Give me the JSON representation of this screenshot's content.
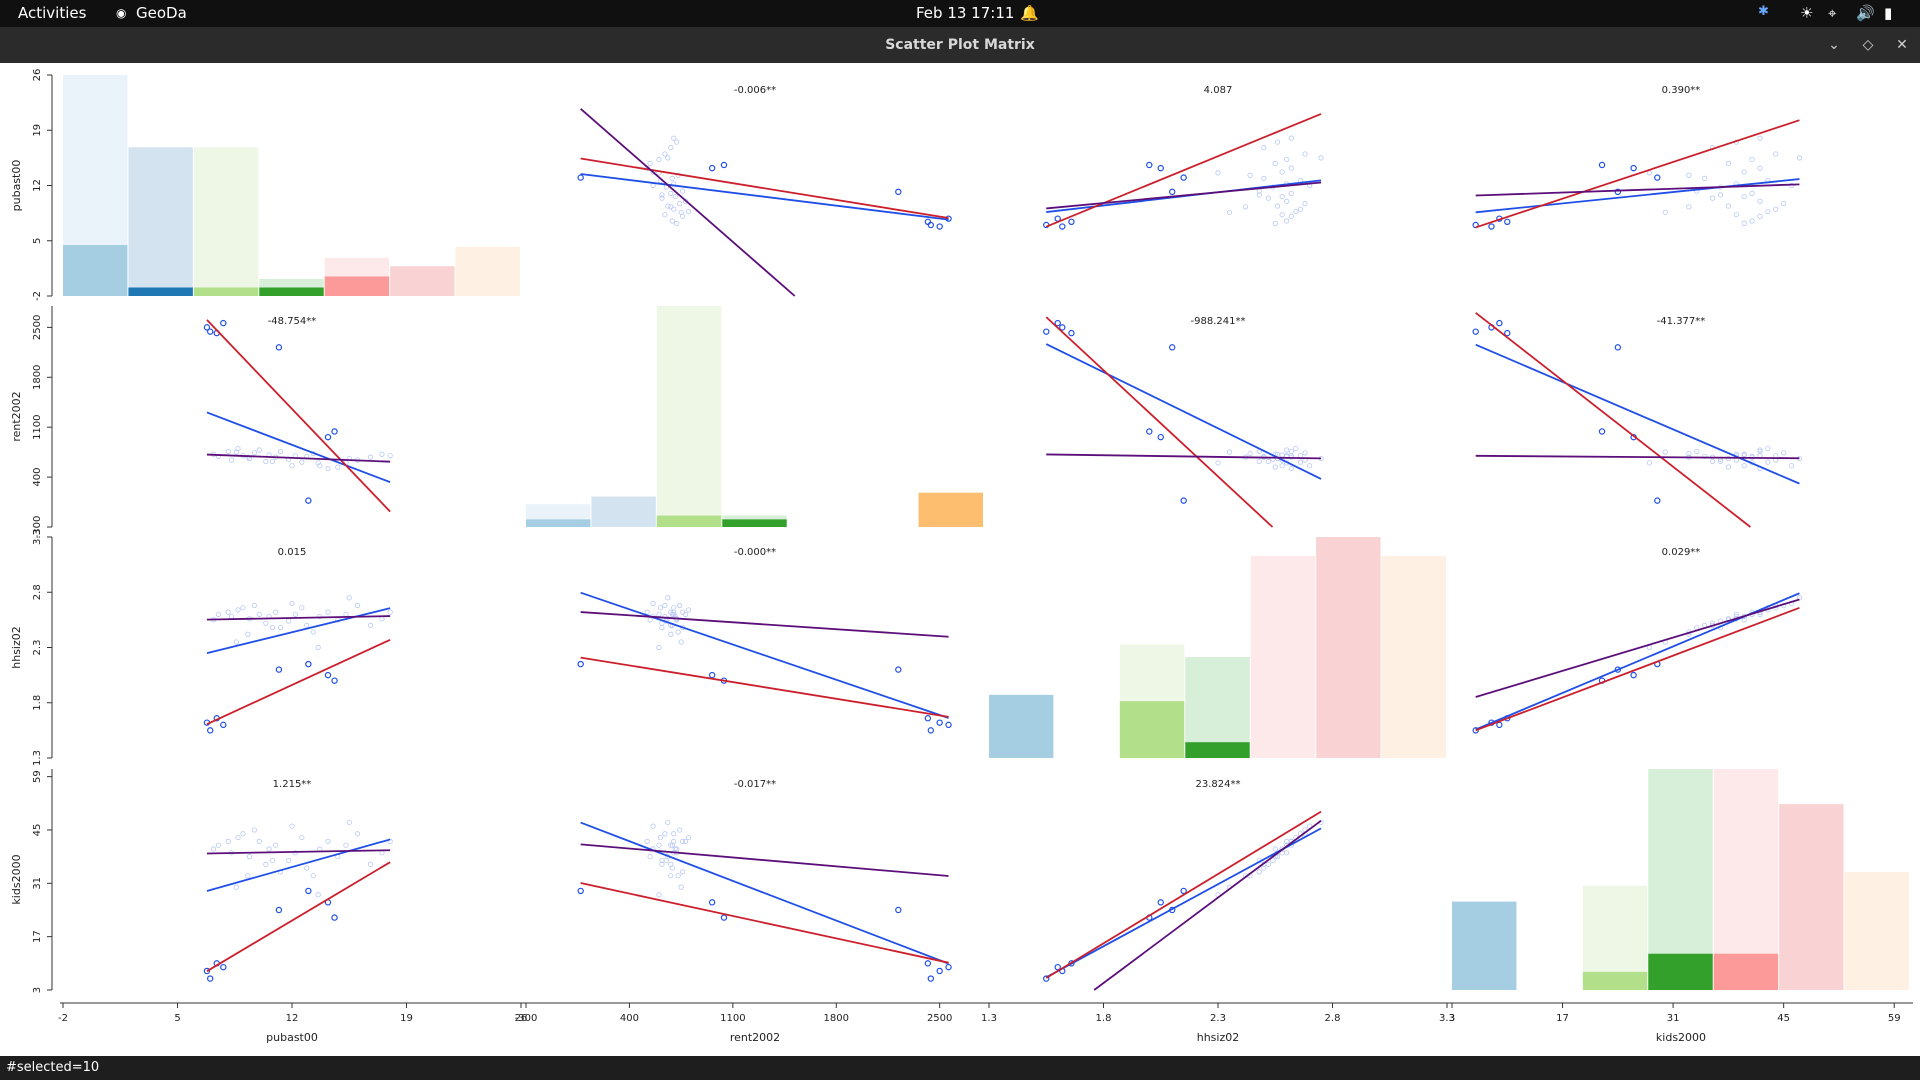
{
  "topbar": {
    "activities": "Activities",
    "app_name": "GeoDa",
    "clock": "Feb 13  17:11"
  },
  "window": {
    "title": "Scatter Plot Matrix"
  },
  "status": {
    "text": "#selected=10"
  },
  "colors": {
    "fit_all": "#1f4fe6",
    "fit_selected": "#cc1f2c",
    "fit_unselected": "#5c0f7a",
    "point": "#1f4fe6",
    "hist_palette": [
      "#a6cee3",
      "#1f78b4",
      "#b2df8a",
      "#33a02c",
      "#fb9a99",
      "#e31a1c",
      "#fdbf6f"
    ]
  },
  "chart_data": {
    "type": "scatter",
    "variables": [
      "pubast00",
      "rent2002",
      "hhsiz02",
      "kids2000"
    ],
    "axes": {
      "pubast00": {
        "ticks": [
          "-2",
          "5",
          "12",
          "19",
          "26"
        ],
        "min": -2,
        "max": 26
      },
      "rent2002": {
        "ticks": [
          "-300",
          "400",
          "1100",
          "1800",
          "2500"
        ],
        "min": -300,
        "max": 2800
      },
      "hhsiz02": {
        "ticks": [
          "1.3",
          "1.8",
          "2.3",
          "2.8",
          "3.3"
        ],
        "min": 1.3,
        "max": 3.3
      },
      "kids2000": {
        "ticks": [
          "3",
          "17",
          "31",
          "45",
          "59"
        ],
        "min": 3,
        "max": 61
      }
    },
    "slope_labels": [
      {
        "row": 0,
        "col": 1,
        "text": "-0.006**"
      },
      {
        "row": 0,
        "col": 2,
        "text": "4.087"
      },
      {
        "row": 0,
        "col": 3,
        "text": "0.390**"
      },
      {
        "row": 1,
        "col": 0,
        "text": "-48.754**"
      },
      {
        "row": 1,
        "col": 2,
        "text": "-988.241**"
      },
      {
        "row": 1,
        "col": 3,
        "text": "-41.377**"
      },
      {
        "row": 2,
        "col": 0,
        "text": "0.015"
      },
      {
        "row": 2,
        "col": 1,
        "text": "-0.000**"
      },
      {
        "row": 2,
        "col": 3,
        "text": "0.029**"
      },
      {
        "row": 3,
        "col": 0,
        "text": "1.215**"
      },
      {
        "row": 3,
        "col": 1,
        "text": "-0.017**"
      },
      {
        "row": 3,
        "col": 2,
        "text": "23.824**"
      }
    ],
    "histograms": [
      {
        "variable": "pubast00",
        "bins": [
          {
            "start": -2,
            "end": 2,
            "count": 26,
            "selected": 6
          },
          {
            "start": 2,
            "end": 6,
            "count": 17.5,
            "selected": 1
          },
          {
            "start": 6,
            "end": 10,
            "count": 17.5,
            "selected": 1
          },
          {
            "start": 10,
            "end": 14,
            "count": 2,
            "selected": 1
          },
          {
            "start": 14,
            "end": 18,
            "count": 4.5,
            "selected": 2.3
          },
          {
            "start": 18,
            "end": 22,
            "count": 3.5,
            "selected": 0
          },
          {
            "start": 22,
            "end": 26,
            "count": 5.8,
            "selected": 0
          }
        ]
      },
      {
        "variable": "rent2002",
        "bins": [
          {
            "start": -300,
            "end": 143,
            "count": 3,
            "selected": 1
          },
          {
            "start": 143,
            "end": 586,
            "count": 4,
            "selected": 0
          },
          {
            "start": 586,
            "end": 1029,
            "count": 29,
            "selected": 1.5
          },
          {
            "start": 1029,
            "end": 1471,
            "count": 1.5,
            "selected": 1
          },
          {
            "start": 1471,
            "end": 1914,
            "count": 0,
            "selected": 0
          },
          {
            "start": 1914,
            "end": 2357,
            "count": 0,
            "selected": 0
          },
          {
            "start": 2357,
            "end": 2800,
            "count": 4.5,
            "selected": 4.5
          }
        ]
      },
      {
        "variable": "hhsiz02",
        "bins": [
          {
            "start": 1.3,
            "end": 1.59,
            "count": 4,
            "selected": 4
          },
          {
            "start": 1.59,
            "end": 1.87,
            "count": 0,
            "selected": 0
          },
          {
            "start": 1.87,
            "end": 2.16,
            "count": 7.2,
            "selected": 3.6
          },
          {
            "start": 2.16,
            "end": 2.44,
            "count": 6.4,
            "selected": 1
          },
          {
            "start": 2.44,
            "end": 2.73,
            "count": 12.8,
            "selected": 0
          },
          {
            "start": 2.73,
            "end": 3.01,
            "count": 14,
            "selected": 0
          },
          {
            "start": 3.01,
            "end": 3.3,
            "count": 12.8,
            "selected": 0
          }
        ]
      },
      {
        "variable": "kids2000",
        "bins": [
          {
            "start": 3,
            "end": 11.3,
            "count": 7.8,
            "selected": 7.8
          },
          {
            "start": 11.3,
            "end": 19.6,
            "count": 0,
            "selected": 0
          },
          {
            "start": 19.6,
            "end": 27.9,
            "count": 9.2,
            "selected": 1.6
          },
          {
            "start": 27.9,
            "end": 36.1,
            "count": 19.5,
            "selected": 3.2
          },
          {
            "start": 36.1,
            "end": 44.4,
            "count": 19.5,
            "selected": 3.2
          },
          {
            "start": 44.4,
            "end": 52.7,
            "count": 16.4,
            "selected": 0
          },
          {
            "start": 52.7,
            "end": 61,
            "count": 10.4,
            "selected": 0
          }
        ]
      }
    ],
    "points": {
      "pubast00": [
        7.2,
        7.5,
        8.1,
        8.3,
        8.7,
        9.0,
        9.4,
        9.7,
        10.0,
        10.4,
        10.6,
        11.0,
        11.3,
        11.8,
        12.2,
        12.6,
        12.9,
        13.3,
        13.7,
        14.2,
        14.8,
        15.3,
        16.0,
        16.8,
        17.5,
        18.0,
        8.6,
        9.3,
        10.8,
        12.0,
        13.6,
        15.5,
        6.8,
        7.0,
        7.4,
        7.8,
        11.2,
        13.0,
        14.2,
        14.6
      ],
      "rent2002": [
        720,
        690,
        760,
        640,
        800,
        700,
        660,
        740,
        780,
        620,
        710,
        680,
        760,
        650,
        700,
        610,
        690,
        730,
        560,
        520,
        540,
        600,
        640,
        680,
        720,
        700,
        750,
        680,
        620,
        560,
        600,
        660,
        2500,
        2440,
        2420,
        2560,
        2220,
        70,
        960,
        1040
      ],
      "hhsiz02": [
        2.55,
        2.6,
        2.62,
        2.58,
        2.64,
        2.66,
        2.56,
        2.68,
        2.6,
        2.52,
        2.58,
        2.62,
        2.48,
        2.54,
        2.6,
        2.66,
        2.5,
        2.44,
        2.58,
        2.62,
        2.55,
        2.6,
        2.68,
        2.5,
        2.56,
        2.62,
        2.35,
        2.42,
        2.48,
        2.7,
        2.3,
        2.75,
        1.62,
        1.55,
        1.66,
        1.6,
        2.1,
        2.15,
        2.05,
        2.0
      ],
      "kids2000": [
        40,
        41,
        42,
        39,
        43,
        44,
        38,
        45,
        42,
        36,
        40,
        41,
        34,
        37,
        39,
        43,
        35,
        33,
        40,
        42,
        38,
        41,
        44,
        36,
        39,
        42,
        30,
        33,
        37,
        46,
        28,
        47,
        8,
        6,
        10,
        9,
        24,
        29,
        26,
        22
      ],
      "selected": [
        32,
        33,
        34,
        35,
        36,
        37,
        38,
        39
      ]
    }
  }
}
